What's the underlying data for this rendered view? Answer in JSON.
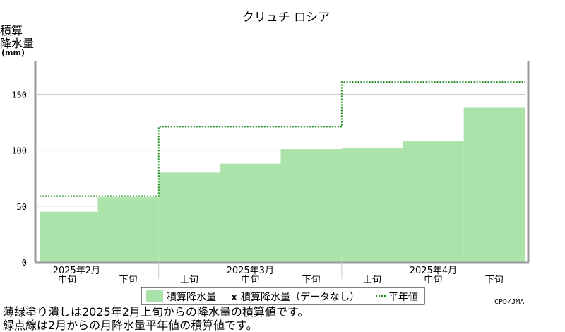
{
  "chart_data": {
    "type": "bar",
    "title": "クリュチ ロシア",
    "ylabel_lines": [
      "積算",
      "降水量"
    ],
    "yunit": "(mm)",
    "ylim": [
      0,
      180
    ],
    "yticks": [
      0,
      50,
      100,
      150
    ],
    "grid": true,
    "categories": [
      "2月中旬",
      "2月下旬",
      "3月上旬",
      "3月中旬",
      "3月下旬",
      "4月上旬",
      "4月中旬",
      "4月下旬"
    ],
    "period_labels": [
      "中旬",
      "下旬",
      "上旬",
      "中旬",
      "下旬",
      "上旬",
      "中旬",
      "下旬"
    ],
    "month_labels": [
      "2025年2月",
      "2025年3月",
      "2025年4月"
    ],
    "series": [
      {
        "name": "積算降水量",
        "kind": "bar",
        "color": "#abe3aa",
        "values": [
          45,
          58,
          80,
          88,
          101,
          102,
          108,
          138
        ]
      },
      {
        "name": "平年値",
        "kind": "step-dotted",
        "color": "#1a8a1a",
        "values": [
          59,
          59,
          121,
          121,
          121,
          161,
          161,
          161
        ]
      }
    ],
    "legend": {
      "placement": "bottom",
      "items": [
        "積算降水量",
        "積算降水量（データなし）",
        "平年値"
      ]
    }
  },
  "source": "CPD/JMA",
  "notes": [
    "薄緑塗り潰しは2025年2月上旬からの降水量の積算値です。",
    "緑点線は2月からの月降水量平年値の積算値です。"
  ]
}
